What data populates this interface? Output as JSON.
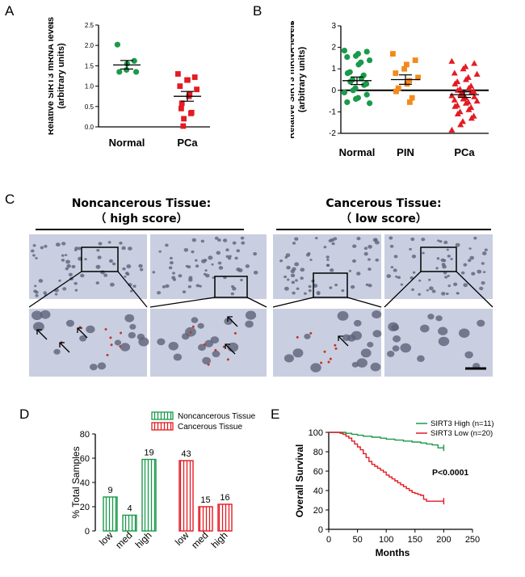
{
  "panels": {
    "a": {
      "letter": "A"
    },
    "b": {
      "letter": "B"
    },
    "c": {
      "letter": "C"
    },
    "d": {
      "letter": "D"
    },
    "e": {
      "letter": "E"
    }
  },
  "section_c": {
    "noncancer_title": "Noncancerous Tissue:",
    "noncancer_sub": "（ high score）",
    "cancer_title": "Cancerous Tissue:",
    "cancer_sub": "（ low score）"
  },
  "colors": {
    "green": "#1a9a4a",
    "red": "#e31b23",
    "orange": "#f28a1c",
    "tissue": "#c9cfe0",
    "nuclei": "#5e6179",
    "stain": "#c0392b"
  },
  "chart_data": [
    {
      "id": "A",
      "type": "scatter",
      "ylabel": "Relative SIRT3 mRNA levels (arbitrary units)",
      "ylim": [
        0.0,
        2.5
      ],
      "yticks": [
        "0.0",
        "0.5",
        "1.0",
        "1.5",
        "2.0",
        "2.5"
      ],
      "categories": [
        "Normal",
        "PCa"
      ],
      "groups": [
        {
          "name": "Normal",
          "mean": 1.52,
          "sem_low": 1.42,
          "sem_high": 1.63,
          "values": [
            2.02,
            1.62,
            1.55,
            1.4,
            1.35,
            1.35
          ]
        },
        {
          "name": "PCa",
          "mean": 0.75,
          "sem_low": 0.63,
          "sem_high": 0.87,
          "values": [
            1.3,
            1.22,
            1.15,
            1.15,
            1.0,
            0.92,
            0.8,
            0.75,
            0.58,
            0.45,
            0.35,
            0.33,
            0.2,
            0.02
          ]
        }
      ],
      "significance": [
        {
          "from": "Normal",
          "to": "PCa",
          "label": "***"
        }
      ]
    },
    {
      "id": "B",
      "type": "scatter",
      "ylabel": "Relative SIRT3 mRNA levels (arbitrary units)",
      "ylim": [
        -2,
        3
      ],
      "yticks": [
        "-2",
        "-1",
        "0",
        "1",
        "2",
        "3"
      ],
      "categories": [
        "Normal",
        "PIN",
        "PCa"
      ],
      "groups": [
        {
          "name": "Normal",
          "mean": 0.45,
          "sem_low": 0.27,
          "sem_high": 0.62,
          "values": [
            1.85,
            1.8,
            1.7,
            1.6,
            1.55,
            1.4,
            1.3,
            1.2,
            0.85,
            0.8,
            0.7,
            0.55,
            0.5,
            0.4,
            0.3,
            0.25,
            0.1,
            0.0,
            -0.1,
            -0.2,
            -0.35,
            -0.4,
            -0.55,
            -0.6
          ]
        },
        {
          "name": "PIN",
          "mean": 0.5,
          "sem_low": 0.28,
          "sem_high": 0.72,
          "values": [
            1.7,
            1.4,
            1.2,
            1.0,
            0.8,
            0.6,
            0.45,
            0.3,
            0.1,
            -0.05,
            -0.35,
            -0.55
          ]
        },
        {
          "name": "PCa",
          "mean": -0.2,
          "sem_low": -0.33,
          "sem_high": -0.07,
          "values": [
            1.35,
            1.25,
            1.1,
            1.0,
            0.8,
            0.75,
            0.6,
            0.5,
            0.4,
            0.3,
            0.2,
            0.1,
            0.05,
            0.0,
            -0.05,
            -0.1,
            -0.15,
            -0.2,
            -0.25,
            -0.3,
            -0.35,
            -0.4,
            -0.45,
            -0.5,
            -0.55,
            -0.6,
            -0.7,
            -0.75,
            -0.8,
            -0.9,
            -1.0,
            -1.1,
            -1.2,
            -1.3,
            -1.45,
            -1.6,
            -1.85
          ]
        }
      ],
      "significance": [
        {
          "from": "Normal",
          "to": "PCa",
          "label": "**"
        },
        {
          "from": "PIN",
          "to": "PCa",
          "label": "*"
        }
      ]
    },
    {
      "id": "D",
      "type": "bar",
      "ylabel": "% Total Samples",
      "ylim": [
        0,
        80
      ],
      "yticks": [
        "0",
        "20",
        "40",
        "60",
        "80"
      ],
      "categories": [
        "low",
        "med",
        "high"
      ],
      "legend_position": "top-right",
      "series": [
        {
          "name": "Noncancerous Tissue",
          "values": [
            28,
            13,
            59
          ],
          "labels": [
            "9",
            "4",
            "19"
          ]
        },
        {
          "name": "Cancerous Tissue",
          "values": [
            58,
            20,
            22
          ],
          "labels": [
            "43",
            "15",
            "16"
          ]
        }
      ]
    },
    {
      "id": "E",
      "type": "line",
      "ylabel": "Overall Survival",
      "xlabel": "Months",
      "xlim": [
        0,
        250
      ],
      "ylim": [
        0,
        100
      ],
      "xticks": [
        "0",
        "50",
        "100",
        "150",
        "200",
        "250"
      ],
      "yticks": [
        "0",
        "20",
        "40",
        "60",
        "80",
        "100"
      ],
      "legend_position": "top-right",
      "annotation": "P<0.0001",
      "series": [
        {
          "name": "SIRT3 High (n=11)",
          "points": [
            [
              0,
              100
            ],
            [
              20,
              100
            ],
            [
              30,
              99
            ],
            [
              40,
              98
            ],
            [
              50,
              97
            ],
            [
              60,
              96
            ],
            [
              75,
              95
            ],
            [
              90,
              94
            ],
            [
              100,
              93
            ],
            [
              115,
              92
            ],
            [
              130,
              91
            ],
            [
              145,
              90
            ],
            [
              160,
              89
            ],
            [
              170,
              88
            ],
            [
              180,
              87
            ],
            [
              190,
              84
            ],
            [
              200,
              84
            ]
          ]
        },
        {
          "name": "SIRT3 Low (n=20)",
          "points": [
            [
              0,
              100
            ],
            [
              20,
              99
            ],
            [
              25,
              98
            ],
            [
              30,
              96
            ],
            [
              35,
              94
            ],
            [
              40,
              91
            ],
            [
              45,
              88
            ],
            [
              50,
              85
            ],
            [
              55,
              82
            ],
            [
              60,
              78
            ],
            [
              65,
              74
            ],
            [
              70,
              70
            ],
            [
              75,
              67
            ],
            [
              80,
              65
            ],
            [
              85,
              63
            ],
            [
              90,
              61
            ],
            [
              95,
              59
            ],
            [
              100,
              56
            ],
            [
              105,
              54
            ],
            [
              110,
              52
            ],
            [
              115,
              50
            ],
            [
              120,
              48
            ],
            [
              125,
              46
            ],
            [
              130,
              44
            ],
            [
              135,
              42
            ],
            [
              140,
              40
            ],
            [
              145,
              38
            ],
            [
              150,
              37
            ],
            [
              155,
              36
            ],
            [
              160,
              35
            ],
            [
              165,
              31
            ],
            [
              170,
              29
            ],
            [
              175,
              29
            ],
            [
              200,
              29
            ]
          ]
        }
      ]
    }
  ]
}
